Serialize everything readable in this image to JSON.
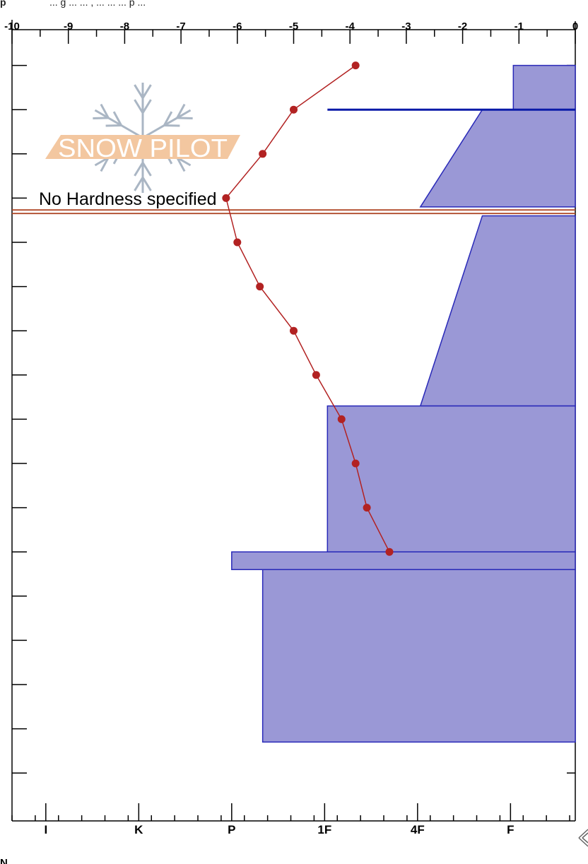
{
  "header": {
    "prefix": "p",
    "text": "... g ... ... , ... ... ... p ..."
  },
  "logo": {
    "text": "SNOW PILOT"
  },
  "annotation": {
    "text": "No Hardness specified"
  },
  "footer": {
    "notes_label": "N"
  },
  "colors": {
    "layer_fill": "#9a98d6",
    "layer_stroke": "#2929b8",
    "profile": "#b22222",
    "marker_line": "#0a1aa8",
    "boundary": "#b04a2a",
    "logo_orange": "#f3c7a0",
    "logo_flake": "#aab6c4"
  },
  "chart_data": {
    "type": "line",
    "x_axis_top": {
      "range": [
        -10,
        0
      ],
      "ticks": [
        -10,
        -9,
        -8,
        -7,
        -6,
        -5,
        -4,
        -3,
        -2,
        -1,
        0
      ],
      "labels": [
        "-10",
        "-9",
        "-8",
        "-7",
        "-6",
        "-5",
        "-4",
        "-3",
        "-2",
        "-1",
        "0"
      ]
    },
    "x_axis_bottom": {
      "labels": [
        "I",
        "K",
        "P",
        "1F",
        "4F",
        "F"
      ],
      "tick_positions": [
        -9.4,
        -7.75,
        -6.1,
        -4.45,
        -2.8,
        -1.15
      ]
    },
    "y_axis": {
      "range": [
        0,
        22
      ],
      "direction": "downward",
      "grid": false
    },
    "series": [
      {
        "x": [
          -3.9,
          -5.0,
          -5.55,
          -6.2,
          -6.0,
          -5.6,
          -5.0,
          -4.6,
          -4.15,
          -3.9,
          -3.7,
          -3.3
        ],
        "y": [
          1,
          2,
          3,
          4,
          5,
          6,
          7,
          8,
          9,
          10,
          11,
          12
        ]
      }
    ],
    "hardness_profile": [
      {
        "top": 1,
        "bottom": 2,
        "x_left": -1.1
      },
      {
        "top": 2,
        "bottom": 4.2,
        "x_left_top": -1.65,
        "x_left_bottom": -2.75
      },
      {
        "top": 4.4,
        "bottom": 8.7,
        "x_left_top": -1.65,
        "x_left_bottom": -2.75
      },
      {
        "top": 8.7,
        "bottom": 12.0,
        "x_left": -4.4
      },
      {
        "top": 12.0,
        "bottom": 12.4,
        "x_left": -6.1
      },
      {
        "top": 12.4,
        "bottom": 16.3,
        "x_left": -5.55
      }
    ],
    "layer_marker_line": {
      "y": 2,
      "x_from": -4.4,
      "x_to": 0
    },
    "layer_boundary": {
      "y": 4.3
    }
  }
}
